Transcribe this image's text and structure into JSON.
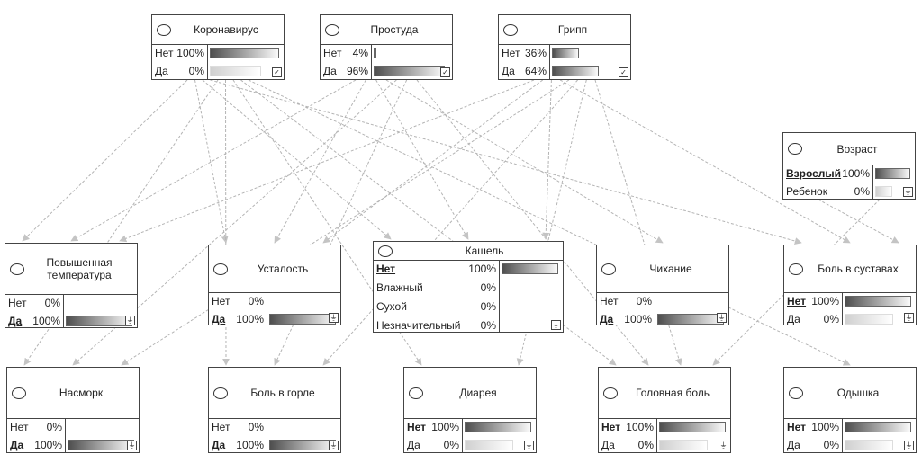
{
  "nodes": {
    "coronavirus": {
      "title": "Коронавирус",
      "states": [
        {
          "name": "Нет",
          "pct": "100%",
          "value": 1.0
        },
        {
          "name": "Да",
          "pct": "0%",
          "value": 0.0
        }
      ]
    },
    "cold": {
      "title": "Простуда",
      "states": [
        {
          "name": "Нет",
          "pct": "4%",
          "value": 0.04
        },
        {
          "name": "Да",
          "pct": "96%",
          "value": 0.96
        }
      ]
    },
    "flu": {
      "title": "Грипп",
      "states": [
        {
          "name": "Нет",
          "pct": "36%",
          "value": 0.36
        },
        {
          "name": "Да",
          "pct": "64%",
          "value": 0.64
        }
      ]
    },
    "age": {
      "title": "Возраст",
      "states": [
        {
          "name": "Взрослый",
          "pct": "100%",
          "value": 1.0,
          "selected": true
        },
        {
          "name": "Ребенок",
          "pct": "0%",
          "value": 0.0
        }
      ]
    },
    "fever": {
      "title": "Повышенная температура",
      "states": [
        {
          "name": "Нет",
          "pct": "0%",
          "value": 0.0
        },
        {
          "name": "Да",
          "pct": "100%",
          "value": 1.0,
          "selected": true
        }
      ]
    },
    "fatigue": {
      "title": "Усталость",
      "states": [
        {
          "name": "Нет",
          "pct": "0%",
          "value": 0.0
        },
        {
          "name": "Да",
          "pct": "100%",
          "value": 1.0,
          "selected": true
        }
      ]
    },
    "cough": {
      "title": "Кашель",
      "states": [
        {
          "name": "Нет",
          "pct": "100%",
          "value": 1.0,
          "selected": true
        },
        {
          "name": "Влажный",
          "pct": "0%",
          "value": 0.0
        },
        {
          "name": "Сухой",
          "pct": "0%",
          "value": 0.0
        },
        {
          "name": "Незначительный",
          "pct": "0%",
          "value": 0.0
        }
      ]
    },
    "sneezing": {
      "title": "Чихание",
      "states": [
        {
          "name": "Нет",
          "pct": "0%",
          "value": 0.0
        },
        {
          "name": "Да",
          "pct": "100%",
          "value": 1.0,
          "selected": true
        }
      ]
    },
    "joint_pain": {
      "title": "Боль в суставах",
      "states": [
        {
          "name": "Нет",
          "pct": "100%",
          "value": 1.0,
          "selected": true
        },
        {
          "name": "Да",
          "pct": "0%",
          "value": 0.0
        }
      ]
    },
    "runny_nose": {
      "title": "Насморк",
      "states": [
        {
          "name": "Нет",
          "pct": "0%",
          "value": 0.0
        },
        {
          "name": "Да",
          "pct": "100%",
          "value": 1.0,
          "selected": true
        }
      ]
    },
    "sore_throat": {
      "title": "Боль в горле",
      "states": [
        {
          "name": "Нет",
          "pct": "0%",
          "value": 0.0
        },
        {
          "name": "Да",
          "pct": "100%",
          "value": 1.0,
          "selected": true
        }
      ]
    },
    "diarrhea": {
      "title": "Диарея",
      "states": [
        {
          "name": "Нет",
          "pct": "100%",
          "value": 1.0,
          "selected": true
        },
        {
          "name": "Да",
          "pct": "0%",
          "value": 0.0
        }
      ]
    },
    "headache": {
      "title": "Головная боль",
      "states": [
        {
          "name": "Нет",
          "pct": "100%",
          "value": 1.0,
          "selected": true
        },
        {
          "name": "Да",
          "pct": "0%",
          "value": 0.0
        }
      ]
    },
    "dyspnea": {
      "title": "Одышка",
      "states": [
        {
          "name": "Нет",
          "pct": "100%",
          "value": 1.0,
          "selected": true
        },
        {
          "name": "Да",
          "pct": "0%",
          "value": 0.0
        }
      ]
    }
  },
  "edges": [
    [
      "coronavirus",
      "fever"
    ],
    [
      "coronavirus",
      "fatigue"
    ],
    [
      "coronavirus",
      "cough"
    ],
    [
      "coronavirus",
      "joint_pain"
    ],
    [
      "coronavirus",
      "runny_nose"
    ],
    [
      "coronavirus",
      "sore_throat"
    ],
    [
      "coronavirus",
      "diarrhea"
    ],
    [
      "coronavirus",
      "headache"
    ],
    [
      "coronavirus",
      "dyspnea"
    ],
    [
      "cold",
      "fever"
    ],
    [
      "cold",
      "fatigue"
    ],
    [
      "cold",
      "cough"
    ],
    [
      "cold",
      "sneezing"
    ],
    [
      "cold",
      "runny_nose"
    ],
    [
      "cold",
      "sore_throat"
    ],
    [
      "cold",
      "headache"
    ],
    [
      "flu",
      "fever"
    ],
    [
      "flu",
      "fatigue"
    ],
    [
      "flu",
      "cough"
    ],
    [
      "flu",
      "joint_pain"
    ],
    [
      "flu",
      "runny_nose"
    ],
    [
      "flu",
      "sore_throat"
    ],
    [
      "flu",
      "diarrhea"
    ],
    [
      "flu",
      "headache"
    ],
    [
      "age",
      "joint_pain"
    ],
    [
      "age",
      "headache"
    ]
  ],
  "colors": {
    "edge": "#b4b4b4",
    "border": "#444444",
    "bar_dark": "#4e4e4e"
  },
  "icons": {
    "observed_mark": "check-icon",
    "root_mark": "ground-icon"
  }
}
